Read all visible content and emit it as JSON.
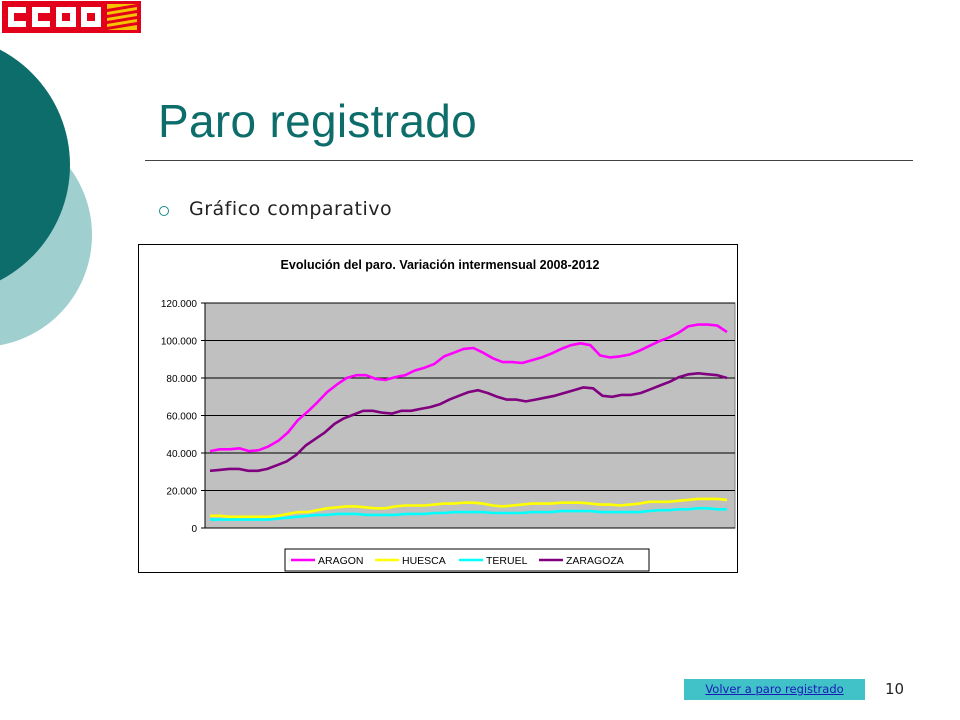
{
  "slide": {
    "title": "Paro registrado",
    "bullet": "Gráfico comparativo",
    "link_label": "Volver a paro registrado",
    "page_number": "10",
    "logo_text": "CCOO"
  },
  "colors": {
    "accent_dark": "#0d6d6a",
    "accent_light": "#9fcfcf",
    "link_bg": "#40c2c8",
    "logo_red": "#e2001a"
  },
  "chart_data": {
    "type": "line",
    "title": "Evolución del paro. Variación intermensual 2008-2012",
    "xlabel": "",
    "ylabel": "",
    "ylim": [
      0,
      120000
    ],
    "yticks": [
      "0",
      "20.000",
      "40.000",
      "60.000",
      "80.000",
      "100.000",
      "120.000"
    ],
    "ytick_values": [
      0,
      20000,
      40000,
      60000,
      80000,
      100000,
      120000
    ],
    "grid": true,
    "legend_position": "bottom",
    "x_points": 60,
    "series": [
      {
        "name": "ARAGON",
        "color": "#ff00ff",
        "values": [
          41000,
          42000,
          42000,
          42500,
          41000,
          41500,
          43500,
          46500,
          51000,
          57500,
          62000,
          67000,
          72500,
          76500,
          80000,
          81500,
          81500,
          79500,
          79000,
          80500,
          81500,
          84000,
          85500,
          87500,
          91500,
          93500,
          95500,
          96000,
          93500,
          90500,
          88500,
          88500,
          88000,
          89500,
          91000,
          93000,
          95500,
          97500,
          98500,
          97500,
          92000,
          91000,
          91500,
          92500,
          94500,
          97000,
          99500,
          101500,
          104000,
          107500,
          108500,
          108500,
          108000,
          104500
        ]
      },
      {
        "name": "HUESCA",
        "color": "#ffff00",
        "values": [
          6500,
          6500,
          6000,
          6000,
          6000,
          6000,
          6000,
          6500,
          7500,
          8500,
          8500,
          9500,
          10500,
          11000,
          11500,
          11500,
          11000,
          10500,
          10500,
          11500,
          12000,
          12000,
          12000,
          12500,
          13000,
          13000,
          13500,
          13500,
          13000,
          12000,
          11500,
          12000,
          12500,
          13000,
          13000,
          13000,
          13500,
          13500,
          13500,
          13000,
          12500,
          12500,
          12000,
          12500,
          13000,
          14000,
          14000,
          14000,
          14500,
          15000,
          15500,
          15500,
          15500,
          15000
        ]
      },
      {
        "name": "TERUEL",
        "color": "#00ffff",
        "values": [
          4500,
          4500,
          4500,
          4500,
          4500,
          4500,
          4500,
          5000,
          5500,
          6000,
          6500,
          7000,
          7000,
          7500,
          7500,
          7500,
          7000,
          7000,
          7000,
          7000,
          7500,
          7500,
          7500,
          8000,
          8000,
          8500,
          8500,
          8500,
          8500,
          8000,
          8000,
          8000,
          8000,
          8500,
          8500,
          8500,
          9000,
          9000,
          9000,
          9000,
          8500,
          8500,
          8500,
          8500,
          8500,
          9000,
          9500,
          9500,
          10000,
          10000,
          10500,
          10500,
          10000,
          10000
        ]
      },
      {
        "name": "ZARAGOZA",
        "color": "#800080",
        "values": [
          30500,
          31000,
          31500,
          31500,
          30500,
          30500,
          31500,
          33500,
          35500,
          39000,
          44000,
          47500,
          51000,
          55500,
          58500,
          60500,
          62500,
          62500,
          61500,
          61000,
          62500,
          62500,
          63500,
          64500,
          66000,
          68500,
          70500,
          72500,
          73500,
          72000,
          70000,
          68500,
          68500,
          67500,
          68500,
          69500,
          70500,
          72000,
          73500,
          75000,
          74500,
          70500,
          70000,
          71000,
          71000,
          72000,
          74000,
          76000,
          78000,
          80500,
          82000,
          82500,
          82000,
          81500,
          80000
        ]
      }
    ]
  }
}
